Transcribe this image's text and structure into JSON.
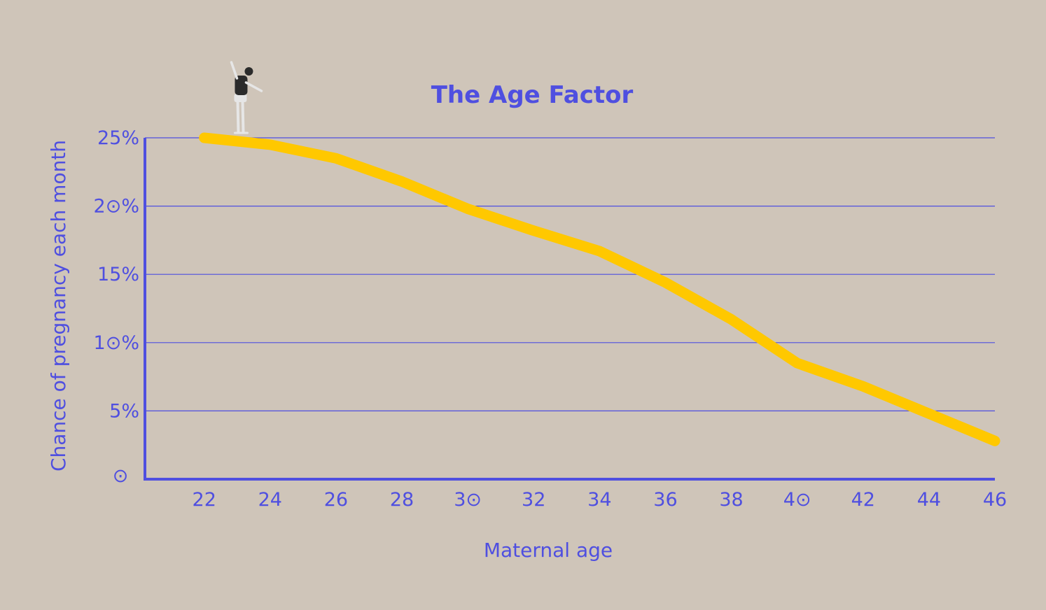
{
  "colors": {
    "background": "#cfc5b9",
    "accent": "#4f4fe0",
    "line": "#ffc800",
    "figure_dark": "#2b2b2b",
    "figure_light": "#e6e6e6"
  },
  "chart_data": {
    "type": "line",
    "title": "The Age Factor",
    "xlabel": "Maternal age",
    "ylabel": "Chance of pregnancy each month",
    "x_ticks": [
      "22",
      "24",
      "26",
      "28",
      "3⊙",
      "32",
      "34",
      "36",
      "38",
      "4⊙",
      "42",
      "44",
      "46"
    ],
    "x_tick_values": [
      22,
      24,
      26,
      28,
      30,
      32,
      34,
      36,
      38,
      40,
      42,
      44,
      46
    ],
    "y_ticks": [
      "⊙",
      "5%",
      "1⊙%",
      "15%",
      "2⊙%",
      "25%"
    ],
    "y_tick_values": [
      0,
      5,
      10,
      15,
      20,
      25
    ],
    "xlim": [
      20.2,
      46
    ],
    "ylim": [
      0,
      25
    ],
    "grid": true,
    "series": [
      {
        "x": [
          22,
          24,
          26,
          28,
          30,
          32,
          34,
          36,
          38,
          40,
          42,
          44,
          46
        ],
        "values": [
          25,
          24.5,
          23.5,
          21.8,
          19.8,
          18.2,
          16.7,
          14.4,
          11.7,
          8.5,
          6.8,
          4.8,
          2.8
        ]
      }
    ],
    "decoration": "figure-standing-on-line-icon"
  }
}
